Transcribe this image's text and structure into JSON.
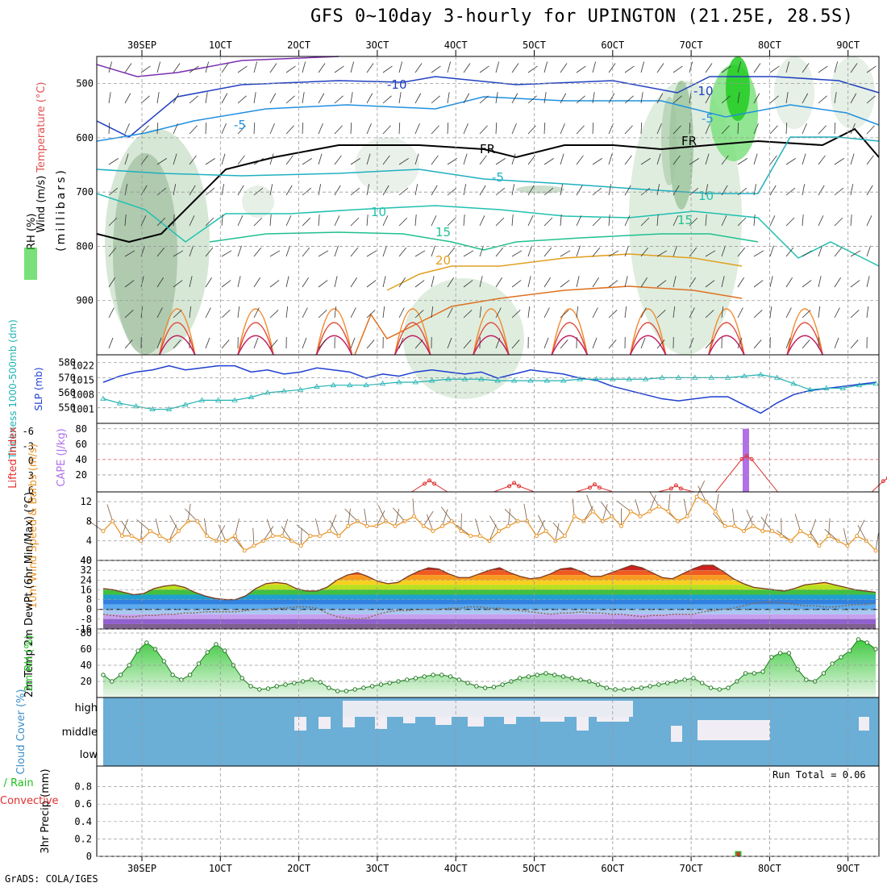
{
  "title": "GFS 0~10day 3-hourly for UPINGTON (21.25E, 28.5S)",
  "footer": "GrADS: COLA/IGES",
  "run_total": "Run Total = 0.06",
  "date_ticks": [
    "30SEP",
    "1OCT",
    "2OCT",
    "3OCT",
    "4OCT",
    "5OCT",
    "6OCT",
    "7OCT",
    "8OCT",
    "9OCT"
  ],
  "colors": {
    "blue_line": "#1f3fd0",
    "cyan_line": "#20b2b2",
    "orange": "#e8962a",
    "red": "#e03030",
    "purple": "#b070e8",
    "green": "#20c020",
    "cloud_blue": "#6baed6",
    "cloud_clear": "#f0eef4"
  },
  "chart_data": [
    {
      "type": "heatmap",
      "panel": "upper-air",
      "ylabel_parts": [
        "Wind (m/s)",
        "Temperature (°C)",
        "RH (%)"
      ],
      "ylabel2": "(millibars)",
      "yticks": [
        500,
        600,
        700,
        800,
        900
      ],
      "ylim": [
        1000,
        450
      ],
      "contour_labels": [
        "-10",
        "-5",
        "FR",
        "-5",
        "10",
        "15",
        "20",
        "-10",
        "-5",
        "FR",
        "10",
        "15"
      ]
    },
    {
      "type": "line",
      "panel": "thickness-slp",
      "ylabel_left": "Thickness 1000-500mb (dm)",
      "ylabel_right": "SLP (mb)",
      "left_ticks": [
        580,
        570,
        560,
        550
      ],
      "right_ticks": [
        1022,
        1015,
        1008,
        1001
      ],
      "series": [
        {
          "name": "SLP (mb)",
          "values": [
            1014,
            1017,
            1019,
            1020,
            1022,
            1020,
            1021,
            1022,
            1022,
            1019,
            1020,
            1018,
            1019,
            1021,
            1020,
            1019,
            1016,
            1018,
            1017,
            1019,
            1020,
            1019,
            1018,
            1019,
            1016,
            1018,
            1020,
            1019,
            1018,
            1016,
            1015,
            1012,
            1010,
            1008,
            1006,
            1005,
            1006,
            1007,
            1007,
            1003,
            999,
            1004,
            1008,
            1010,
            1011,
            1012,
            1013,
            1014
          ]
        },
        {
          "name": "Thickness 1000-500mb (dm)",
          "values": [
            556,
            553,
            551,
            549,
            549,
            552,
            555,
            555,
            555,
            557,
            560,
            561,
            562,
            564,
            565,
            565,
            565,
            566,
            567,
            567,
            568,
            569,
            569,
            569,
            568,
            568,
            568,
            568,
            568,
            569,
            569,
            569,
            569,
            569,
            570,
            570,
            570,
            570,
            570,
            571,
            572,
            570,
            566,
            562,
            563,
            563,
            565,
            566
          ]
        }
      ]
    },
    {
      "type": "line",
      "panel": "cape-li",
      "ylabel_left": "Lifted Index",
      "ylabel_right": "CAPE (J/kg)",
      "left_ticks": [
        "-6",
        "-3",
        "0",
        "3",
        "6"
      ],
      "right_ticks": [
        80,
        60,
        40,
        20
      ],
      "series": [
        {
          "name": "Lifted Index",
          "values": [
            null,
            null,
            null,
            null,
            null,
            null,
            null,
            null,
            null,
            null,
            null,
            null,
            null,
            null,
            null,
            null,
            null,
            null,
            null,
            null,
            null,
            null,
            null,
            null,
            null,
            null,
            null,
            null,
            null,
            null,
            null,
            null,
            null,
            null,
            null,
            null,
            null,
            null,
            null,
            null,
            null,
            null,
            null,
            null,
            null,
            null,
            null,
            null
          ]
        },
        {
          "name": "CAPE (J/kg)",
          "bars": [
            {
              "x": 40.2,
              "value": 80
            }
          ]
        },
        {
          "name": "LI bumps",
          "bumps": [
            [
              19.5,
              20.2,
              6.0,
              4.0
            ],
            [
              24.5,
              25.5,
              6.0,
              4.5
            ],
            [
              29.5,
              30.3,
              6.0,
              4.8
            ],
            [
              34.5,
              35.2,
              6.0,
              5.0
            ],
            [
              38.0,
              40.3,
              6.0,
              -1.0
            ],
            [
              47.5,
              48.0,
              6.0,
              3.5
            ]
          ]
        }
      ]
    },
    {
      "type": "line",
      "panel": "wind",
      "ylabel": "10m Wind Speed & Barbs (m/s)",
      "yticks": [
        12,
        8,
        4
      ],
      "series": [
        {
          "name": "10m Wind Speed (m/s)",
          "values": [
            6,
            8,
            5,
            5,
            4,
            6,
            5,
            4,
            6,
            8,
            8,
            5,
            4,
            4,
            5,
            2,
            3,
            4,
            5,
            5,
            4,
            3,
            5,
            5,
            6,
            5,
            7,
            8,
            7,
            7,
            8,
            7,
            8,
            9,
            7,
            6,
            7,
            8,
            6,
            5,
            5,
            4,
            6,
            7,
            8,
            8,
            5,
            6,
            4,
            5,
            9,
            8,
            10,
            8,
            9,
            7,
            10,
            9,
            10,
            11,
            10,
            8,
            9,
            13,
            12,
            10,
            7,
            7,
            6,
            7,
            6,
            6,
            5,
            4,
            6,
            5,
            3,
            5,
            4,
            3,
            5,
            4,
            2
          ]
        }
      ]
    },
    {
      "type": "area",
      "panel": "temperature",
      "ylabel": "2m Temp 2m DewPt (6hr Min/Max) (°C)",
      "yticks": [
        40,
        32,
        24,
        16,
        8,
        0,
        -8,
        -16
      ],
      "ylim": [
        -16,
        40
      ],
      "series": [
        {
          "name": "2m Temp (°C)",
          "values": [
            17,
            16,
            14,
            12,
            13,
            17,
            19,
            20,
            18,
            14,
            11,
            9,
            8,
            8,
            11,
            17,
            21,
            22,
            21,
            17,
            15,
            15,
            18,
            24,
            28,
            30,
            27,
            23,
            21,
            22,
            27,
            31,
            34,
            33,
            29,
            26,
            26,
            29,
            32,
            34,
            30,
            27,
            25,
            26,
            29,
            33,
            34,
            31,
            27,
            27,
            30,
            33,
            36,
            34,
            30,
            26,
            25,
            29,
            33,
            36,
            36,
            31,
            25,
            21,
            18,
            17,
            16,
            15,
            17,
            20,
            21,
            22,
            20,
            18,
            16,
            15,
            14
          ]
        },
        {
          "name": "2m DewPt (°C)",
          "values": [
            -4,
            -5,
            -6,
            -6,
            -5,
            -5,
            -4,
            -4,
            -3,
            -3,
            -2,
            -2,
            -2,
            -2,
            -1,
            0,
            0,
            1,
            1,
            2,
            2,
            1,
            -3,
            -6,
            -7,
            -8,
            -7,
            -4,
            -2,
            -1,
            -1,
            0,
            0,
            0,
            1,
            1,
            2,
            2,
            1,
            1,
            0,
            -1,
            -2,
            -3,
            -4,
            -3,
            -3,
            -2,
            -3,
            -3,
            -4,
            -4,
            -5,
            -6,
            -5,
            -5,
            -4,
            -4,
            -4,
            -2,
            -1,
            0,
            1,
            3,
            5,
            6,
            6,
            5,
            4,
            3,
            3,
            2,
            2,
            3,
            4,
            4,
            5
          ]
        }
      ]
    },
    {
      "type": "area",
      "panel": "rh",
      "ylabel": "2m RH (%)",
      "yticks": [
        80,
        60,
        40,
        20
      ],
      "ylim": [
        0,
        80
      ],
      "series": [
        {
          "name": "2m RH (%)",
          "values": [
            28,
            20,
            28,
            40,
            58,
            68,
            60,
            45,
            28,
            22,
            28,
            42,
            56,
            66,
            58,
            40,
            24,
            14,
            10,
            11,
            14,
            16,
            18,
            20,
            22,
            19,
            12,
            8,
            8,
            10,
            12,
            14,
            16,
            18,
            20,
            22,
            24,
            26,
            28,
            28,
            26,
            22,
            18,
            14,
            12,
            13,
            16,
            20,
            24,
            26,
            28,
            30,
            28,
            26,
            24,
            22,
            20,
            16,
            12,
            10,
            10,
            11,
            12,
            14,
            16,
            18,
            20,
            22,
            24,
            18,
            12,
            10,
            12,
            20,
            30,
            30,
            32,
            50,
            55,
            55,
            35,
            22,
            20,
            30,
            42,
            50,
            58,
            72,
            68,
            60
          ]
        }
      ]
    },
    {
      "type": "bar",
      "panel": "cloud",
      "ylabel": "Cloud Cover (%)",
      "levels": [
        "high",
        "middle",
        "low"
      ],
      "high_clear": [
        0,
        0,
        0,
        0,
        0,
        0,
        0,
        0,
        0,
        0,
        0,
        0,
        0,
        0,
        0,
        0,
        0,
        0,
        0,
        0,
        0,
        0,
        0,
        0,
        0,
        0,
        0,
        0,
        0,
        0,
        0,
        0,
        0,
        0,
        0,
        0,
        0,
        0,
        0,
        0,
        0,
        0,
        0,
        0,
        0,
        0,
        0,
        0,
        0,
        0,
        0,
        0,
        0,
        0,
        0,
        0,
        0,
        0,
        0,
        0,
        0,
        0,
        0,
        0,
        0,
        0,
        0,
        0,
        0,
        0,
        0,
        0,
        0,
        0,
        0,
        0,
        0,
        0,
        0,
        0,
        0,
        0,
        0,
        0,
        0,
        0,
        0,
        0,
        0,
        0,
        0,
        0
      ]
    },
    {
      "type": "bar",
      "panel": "precip",
      "ylabel": "3hr Precip (mm)",
      "legend_left": "Total / Rain",
      "legend_left2": "Convective",
      "yticks": [
        0.8,
        0.6,
        0.4,
        0.2,
        0
      ],
      "ylim": [
        0,
        1.0
      ],
      "values": [
        {
          "day": 7.6,
          "total": 0.06,
          "convective": 0.05
        }
      ]
    }
  ]
}
